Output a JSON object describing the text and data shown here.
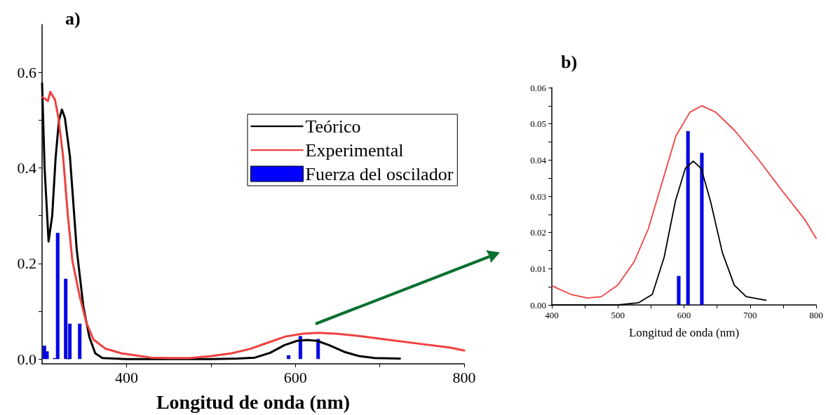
{
  "chart_data": [
    {
      "type": "line",
      "title": "a)",
      "xlabel": "Longitud de onda (nm)",
      "xlim": [
        300,
        800
      ],
      "ylim": [
        -0.01,
        0.7
      ],
      "xticks": [
        400,
        {
          "value": 500,
          "label": null
        },
        600,
        {
          "value": 700,
          "label": null
        },
        800
      ],
      "yticks": [
        {
          "value": 0,
          "label": "0.0"
        },
        {
          "value": 0.1,
          "label": null
        },
        {
          "value": 0.2,
          "label": "0.2"
        },
        {
          "value": 0.3,
          "label": null
        },
        {
          "value": 0.4,
          "label": "0.4"
        },
        {
          "value": 0.5,
          "label": null
        },
        {
          "value": 0.6,
          "label": "0.6"
        }
      ],
      "legend": "right",
      "marker": "none",
      "line_style": "solid",
      "series": [
        {
          "name": "Teórico",
          "color": "#000000",
          "x": [
            300,
            303,
            307.7,
            312,
            316,
            320,
            323.5,
            327,
            333,
            341,
            349,
            356,
            363,
            371.5,
            400,
            500,
            531,
            552,
            570,
            587,
            602,
            614,
            626,
            640,
            658,
            676,
            694,
            724
          ],
          "values": [
            0.577,
            0.4,
            0.246,
            0.3,
            0.42,
            0.5,
            0.522,
            0.505,
            0.424,
            0.23,
            0.109,
            0.046,
            0.012,
            0.002,
            0,
            0,
            0.001,
            0.003,
            0.013,
            0.029,
            0.038,
            0.04,
            0.038,
            0.029,
            0.015,
            0.006,
            0.002,
            0.001
          ]
        },
        {
          "name": "Experimental",
          "color": "#f04040",
          "x": [
            300.8,
            306.9,
            309.7,
            315.2,
            319.3,
            324.9,
            330.4,
            335.9,
            344.2,
            352.5,
            360.8,
            374.7,
            394,
            416.6,
            429,
            454,
            475,
            500,
            524.5,
            546,
            567,
            588,
            609,
            627,
            648,
            677,
            712,
            747,
            783,
            800
          ],
          "values": [
            0.548,
            0.54,
            0.559,
            0.543,
            0.506,
            0.424,
            0.303,
            0.206,
            0.134,
            0.076,
            0.041,
            0.022,
            0.012,
            0.006,
            0.003,
            0.002,
            0.002,
            0.006,
            0.012,
            0.021,
            0.034,
            0.047,
            0.053,
            0.055,
            0.053,
            0.048,
            0.04,
            0.032,
            0.024,
            0.018
          ]
        },
        {
          "name": "Fuerza del oscilador",
          "type": "bar",
          "color": "#0000ff",
          "x": [
            302.7,
            305.8,
            314.7,
            318.5,
            328,
            331,
            332.9,
            344.6,
            592,
            606,
            627
          ],
          "values": [
            0.028,
            0.016,
            0.002,
            0.264,
            0.168,
            0.001,
            0.074,
            0.074,
            0.008,
            0.048,
            0.042
          ]
        }
      ]
    },
    {
      "type": "line",
      "title": "b)",
      "xlabel": "Longitud de onda (nm)",
      "xlim": [
        400,
        800
      ],
      "ylim": [
        0,
        0.06
      ],
      "xticks": [
        400,
        {
          "value": 450,
          "label": null
        },
        500,
        {
          "value": 550,
          "label": null
        },
        600,
        {
          "value": 650,
          "label": null
        },
        700,
        {
          "value": 750,
          "label": null
        },
        800
      ],
      "yticks": [
        {
          "value": 0,
          "label": "0.00"
        },
        {
          "value": 0.005,
          "label": null
        },
        {
          "value": 0.01,
          "label": "0.01"
        },
        {
          "value": 0.015,
          "label": null
        },
        {
          "value": 0.02,
          "label": "0.02"
        },
        {
          "value": 0.025,
          "label": null
        },
        {
          "value": 0.03,
          "label": "0.03"
        },
        {
          "value": 0.035,
          "label": null
        },
        {
          "value": 0.04,
          "label": "0.04"
        },
        {
          "value": 0.045,
          "label": null
        },
        {
          "value": 0.05,
          "label": "0.05"
        },
        {
          "value": 0.055,
          "label": null
        },
        {
          "value": 0.06,
          "label": "0.06"
        }
      ],
      "marker": "none",
      "line_style": "solid",
      "series": [
        {
          "color": "#000000",
          "x": [
            400,
            500,
            531,
            552,
            570,
            587,
            602,
            614,
            626,
            640,
            658,
            676,
            694,
            724
          ],
          "values": [
            0,
            0,
            0.0006,
            0.0029,
            0.0132,
            0.0287,
            0.0377,
            0.0397,
            0.0377,
            0.0287,
            0.0145,
            0.0055,
            0.0023,
            0.0013
          ]
        },
        {
          "color": "#f04040",
          "x": [
            400,
            429,
            454,
            475,
            500,
            524.5,
            546,
            567,
            588,
            609,
            627,
            648,
            677,
            712,
            747,
            783,
            800
          ],
          "values": [
            0.0053,
            0.0029,
            0.0019,
            0.0023,
            0.0055,
            0.0119,
            0.021,
            0.0339,
            0.0468,
            0.0532,
            0.055,
            0.0532,
            0.0481,
            0.0403,
            0.0319,
            0.0235,
            0.0184
          ]
        },
        {
          "type": "bar",
          "color": "#0000ff",
          "x": [
            592,
            606,
            627
          ],
          "values": [
            0.008,
            0.048,
            0.042
          ]
        }
      ]
    }
  ]
}
